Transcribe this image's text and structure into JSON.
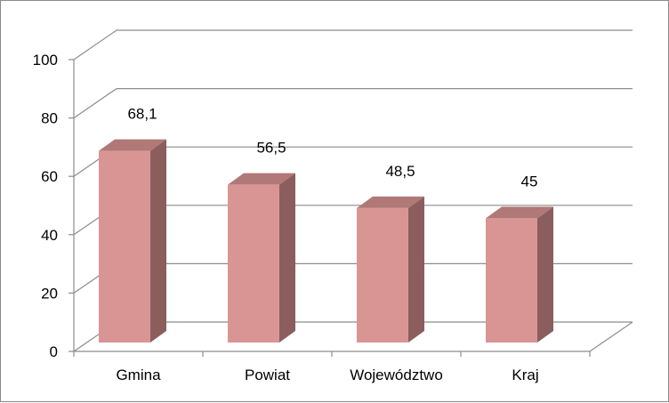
{
  "chart_data": {
    "type": "bar",
    "style": "3d-column",
    "title": "",
    "xlabel": "",
    "ylabel": "",
    "categories": [
      "Gmina",
      "Powiat",
      "Województwo",
      "Kraj"
    ],
    "values": [
      68.1,
      56.5,
      48.5,
      45
    ],
    "data_labels": [
      "68,1",
      "56,5",
      "48,5",
      "45"
    ],
    "ylim": [
      0,
      100
    ],
    "yticks": [
      0,
      20,
      40,
      60,
      80,
      100
    ],
    "ytick_labels": [
      "0",
      "20",
      "40",
      "60",
      "80",
      "100"
    ],
    "grid": true,
    "legend": "none",
    "colors": {
      "bar_front": "#d99594",
      "bar_side": "#8b5e5d",
      "bar_top": "#b07877",
      "grid": "#8c8c8c",
      "axis": "#8c8c8c"
    }
  }
}
